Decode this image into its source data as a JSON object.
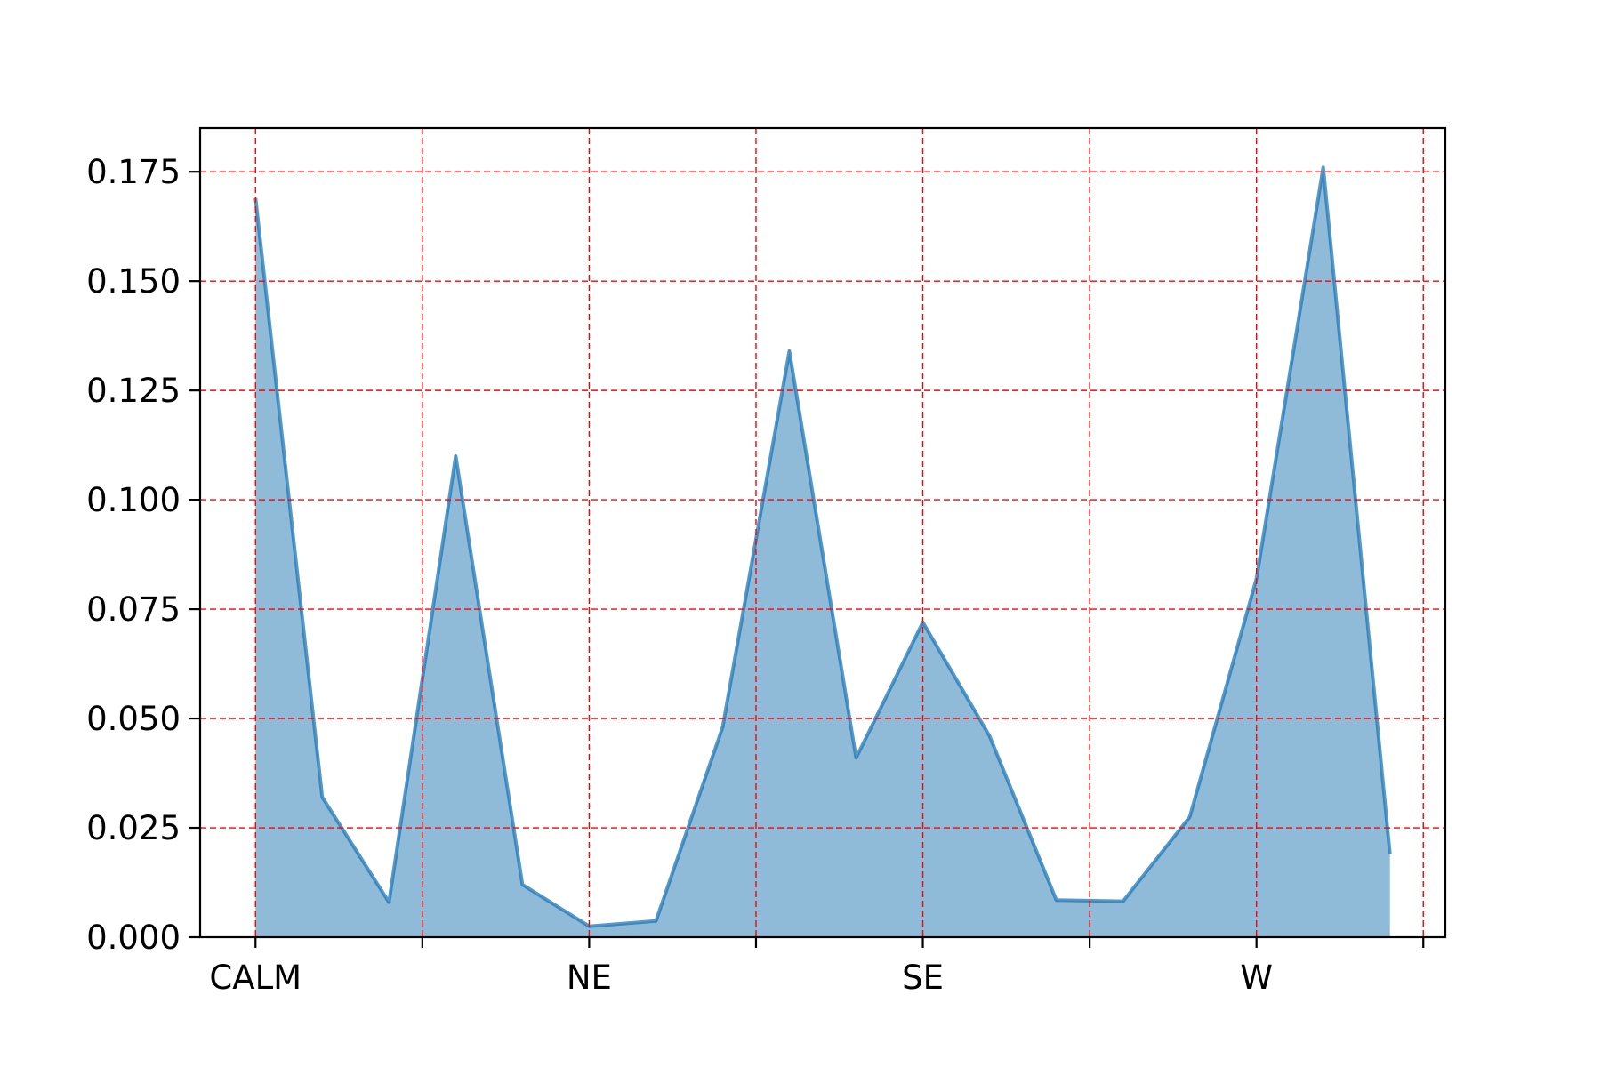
{
  "chart_data": {
    "type": "area",
    "title": "",
    "xlabel": "",
    "ylabel": "",
    "x_tick_labels": [
      "CALM",
      "",
      "NE",
      "",
      "SE",
      "",
      "W",
      ""
    ],
    "x_tick_positions": [
      0,
      2.5,
      5,
      7.5,
      10,
      12.5,
      15,
      17.5
    ],
    "xlim": [
      -0.83,
      17.83
    ],
    "ylim": [
      0,
      0.185
    ],
    "y_ticks": [
      0.0,
      0.025,
      0.05,
      0.075,
      0.1,
      0.125,
      0.15,
      0.175
    ],
    "y_tick_labels": [
      "0.000",
      "0.025",
      "0.050",
      "0.075",
      "0.100",
      "0.125",
      "0.150",
      "0.175"
    ],
    "grid": true,
    "series": [
      {
        "x": [
          0,
          1,
          2,
          3,
          4,
          5,
          6,
          7,
          8,
          9,
          10,
          11,
          12,
          13,
          14,
          15,
          16,
          17
        ],
        "values": [
          0.169,
          0.032,
          0.008,
          0.11,
          0.012,
          0.0025,
          0.0037,
          0.048,
          0.134,
          0.041,
          0.072,
          0.046,
          0.0085,
          0.0082,
          0.0275,
          0.082,
          0.176,
          0.019
        ]
      }
    ],
    "colors": {
      "fill": "#1f77b4",
      "line": "#1f77b4",
      "grid": "#ff0000",
      "axes": "#000000"
    }
  }
}
